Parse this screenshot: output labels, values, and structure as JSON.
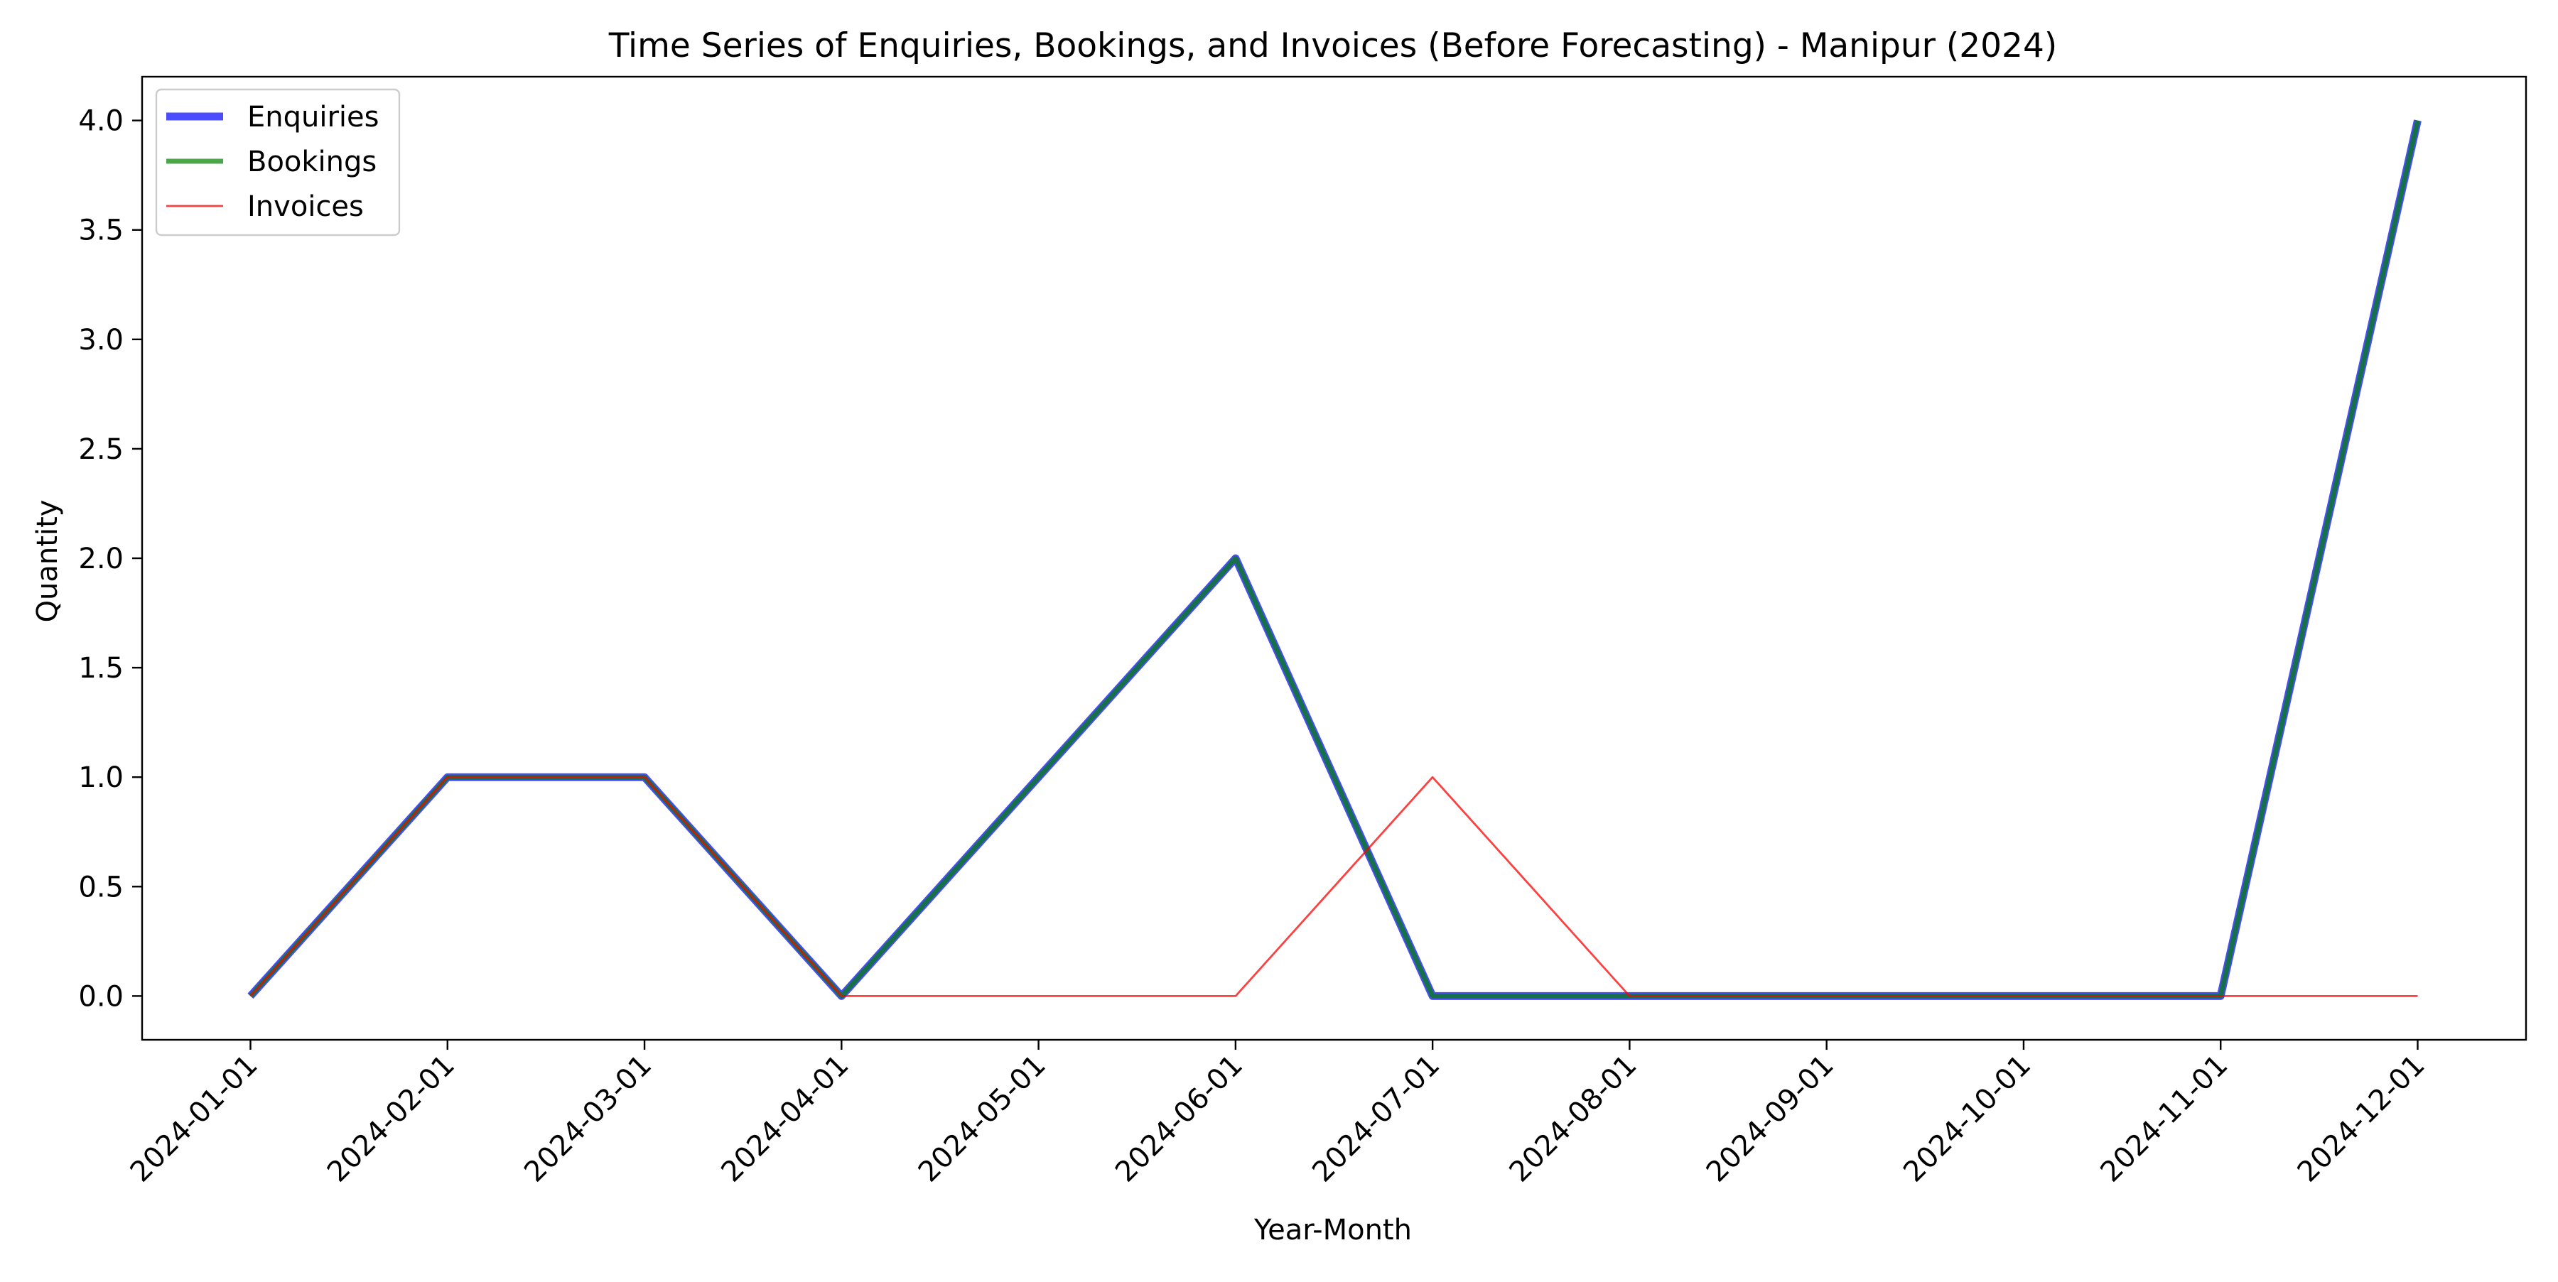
{
  "chart_data": {
    "type": "line",
    "title": "Time Series of Enquiries, Bookings, and Invoices (Before Forecasting) - Manipur (2024)",
    "xlabel": "Year-Month",
    "ylabel": "Quantity",
    "x": [
      "2024-01-01",
      "2024-02-01",
      "2024-03-01",
      "2024-04-01",
      "2024-05-01",
      "2024-06-01",
      "2024-07-01",
      "2024-08-01",
      "2024-09-01",
      "2024-10-01",
      "2024-11-01",
      "2024-12-01"
    ],
    "ylim": [
      -0.2,
      4.2
    ],
    "yticks": [
      0.0,
      0.5,
      1.0,
      1.5,
      2.0,
      2.5,
      3.0,
      3.5,
      4.0
    ],
    "ytick_labels": [
      "0.0",
      "0.5",
      "1.0",
      "1.5",
      "2.0",
      "2.5",
      "3.0",
      "3.5",
      "4.0"
    ],
    "grid": false,
    "legend_position": "top-left",
    "series": [
      {
        "name": "Enquiries",
        "color": "#0000ff",
        "opacity": 0.7,
        "values": [
          0,
          1,
          1,
          0,
          1,
          2,
          0,
          0,
          0,
          0,
          0,
          4
        ]
      },
      {
        "name": "Bookings",
        "color": "#008000",
        "opacity": 0.7,
        "values": [
          0,
          1,
          1,
          0,
          1,
          2,
          0,
          0,
          0,
          0,
          0,
          4
        ]
      },
      {
        "name": "Invoices",
        "color": "#ff0000",
        "opacity": 0.75,
        "values": [
          0,
          1,
          1,
          0,
          0,
          0,
          1,
          0,
          0,
          0,
          0,
          0
        ]
      }
    ]
  }
}
